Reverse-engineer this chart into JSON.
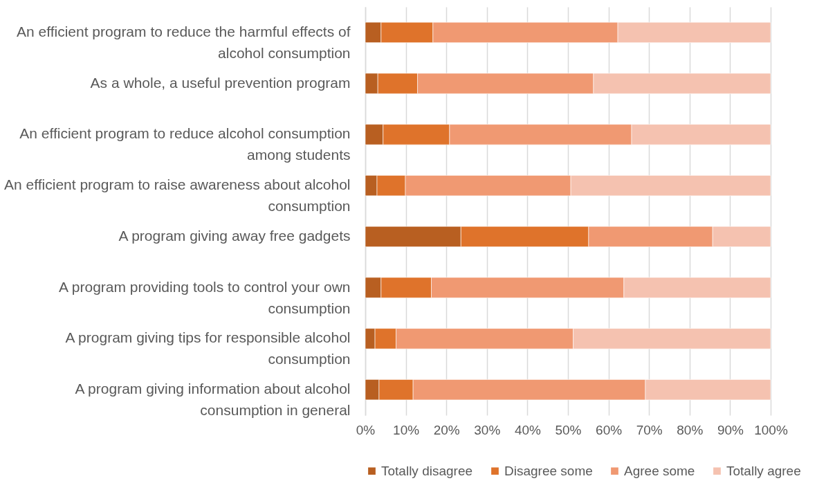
{
  "chart_data": {
    "type": "bar",
    "orientation": "horizontal",
    "stacked": true,
    "categories": [
      "An efficient program to reduce the harmful effects of alcohol consumption",
      "As a whole, a useful prevention program",
      "An efficient program to reduce alcohol consumption among students",
      "An efficient program to raise awareness about alcohol consumption",
      "A program giving away free gadgets",
      "A program providing tools to control your own consumption",
      "A program giving tips for responsible alcohol consumption",
      "A program giving information about alcohol consumption in general"
    ],
    "series": [
      {
        "name": "Totally disagree",
        "color": "#b85f21",
        "values": [
          3.9,
          3.1,
          4.4,
          2.9,
          23.6,
          3.9,
          2.4,
          3.4
        ]
      },
      {
        "name": "Disagree some",
        "color": "#df732b",
        "values": [
          12.8,
          9.8,
          16.4,
          7.0,
          31.5,
          12.4,
          5.2,
          8.4
        ]
      },
      {
        "name": "Agree some",
        "color": "#f09972",
        "values": [
          45.6,
          43.4,
          44.9,
          40.8,
          30.6,
          47.5,
          43.7,
          57.3
        ]
      },
      {
        "name": "Totally agree",
        "color": "#f5c2b0",
        "values": [
          37.7,
          43.7,
          34.3,
          49.3,
          14.3,
          36.2,
          48.7,
          30.9
        ]
      }
    ],
    "xlim": [
      0,
      100
    ],
    "xticks": [
      {
        "value": 0,
        "label": "0%"
      },
      {
        "value": 10,
        "label": "10%"
      },
      {
        "value": 20,
        "label": "20%"
      },
      {
        "value": 30,
        "label": "30%"
      },
      {
        "value": 40,
        "label": "40%"
      },
      {
        "value": 50,
        "label": "50%"
      },
      {
        "value": 60,
        "label": "60%"
      },
      {
        "value": 70,
        "label": "70%"
      },
      {
        "value": 80,
        "label": "80%"
      },
      {
        "value": 90,
        "label": "90%"
      },
      {
        "value": 100,
        "label": "100%"
      }
    ],
    "grid": "x",
    "legend": "bottom"
  }
}
